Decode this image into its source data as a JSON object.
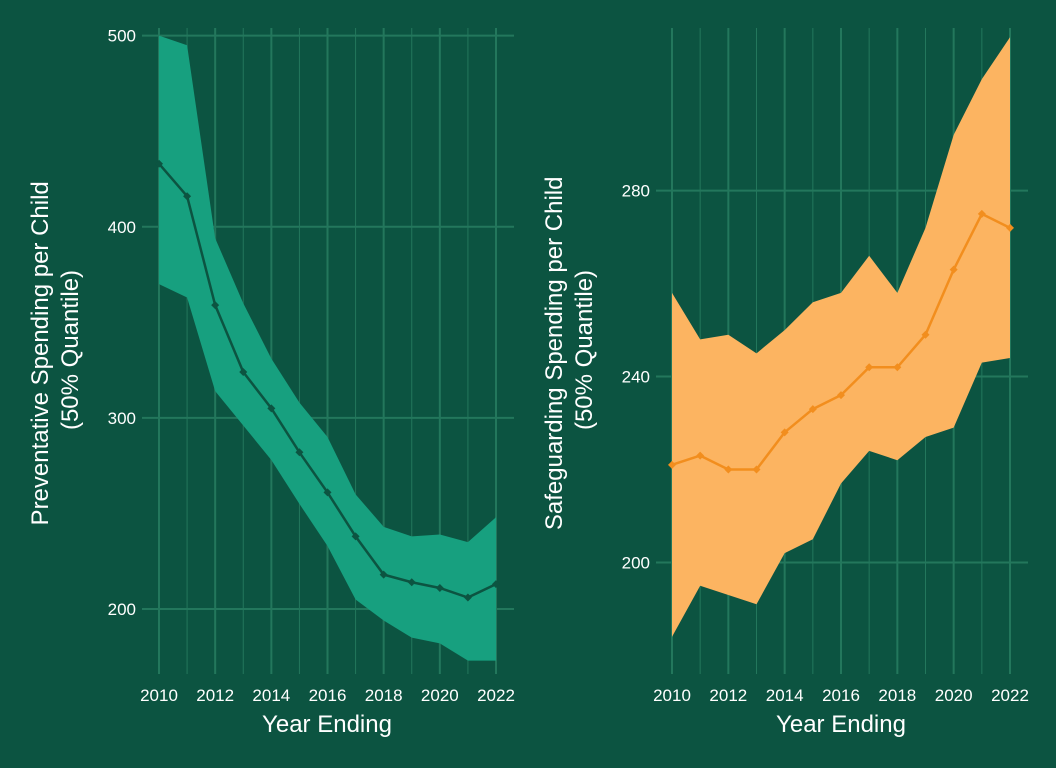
{
  "colors": {
    "background": "#0c5441",
    "grid": "#23775c",
    "left_band": "#17a07f",
    "left_line": "#0c5441",
    "right_band": "#fcb461",
    "right_line": "#f28e1e",
    "text": "#ffffff"
  },
  "chart_data": [
    {
      "type": "line",
      "title": "",
      "xlabel": "Year Ending",
      "ylabel_lines": [
        "Preventative Spending per Child",
        "(50% Quantile)"
      ],
      "x": [
        2010,
        2011,
        2012,
        2013,
        2014,
        2015,
        2016,
        2017,
        2018,
        2019,
        2020,
        2021,
        2022
      ],
      "xticks": [
        "2010",
        "2012",
        "2014",
        "2016",
        "2018",
        "2020",
        "2022"
      ],
      "yticks": [
        "200",
        "300",
        "400",
        "500"
      ],
      "xlim": [
        2010,
        2022
      ],
      "ylim": [
        166,
        504
      ],
      "grid": true,
      "series": [
        {
          "values": [
            433,
            416,
            359,
            324,
            305,
            282,
            261,
            238,
            218,
            214,
            211,
            206,
            213
          ],
          "band_low": [
            370,
            363,
            314,
            296,
            278,
            255,
            233,
            205,
            194,
            185,
            182,
            173,
            173
          ],
          "band_high": [
            500,
            495,
            394,
            360,
            331,
            308,
            290,
            260,
            243,
            238,
            239,
            235,
            248
          ]
        }
      ]
    },
    {
      "type": "line",
      "title": "",
      "xlabel": "Year Ending",
      "ylabel_lines": [
        "Safeguarding Spending per Child",
        "(50% Quantile)"
      ],
      "x": [
        2010,
        2011,
        2012,
        2013,
        2014,
        2015,
        2016,
        2017,
        2018,
        2019,
        2020,
        2021,
        2022
      ],
      "xticks": [
        "2010",
        "2012",
        "2014",
        "2016",
        "2018",
        "2020",
        "2022"
      ],
      "yticks": [
        "200",
        "240",
        "280"
      ],
      "xlim": [
        2010,
        2022
      ],
      "ylim": [
        176,
        315
      ],
      "grid": true,
      "series": [
        {
          "values": [
            221,
            223,
            220,
            220,
            228,
            233,
            236,
            242,
            242,
            249,
            263,
            275,
            272
          ],
          "band_low": [
            184,
            195,
            193,
            191,
            202,
            205,
            217,
            224,
            222,
            227,
            229,
            243,
            244
          ],
          "band_high": [
            258,
            248,
            249,
            245,
            250,
            256,
            258,
            266,
            258,
            272,
            292,
            304,
            313
          ]
        }
      ]
    }
  ]
}
